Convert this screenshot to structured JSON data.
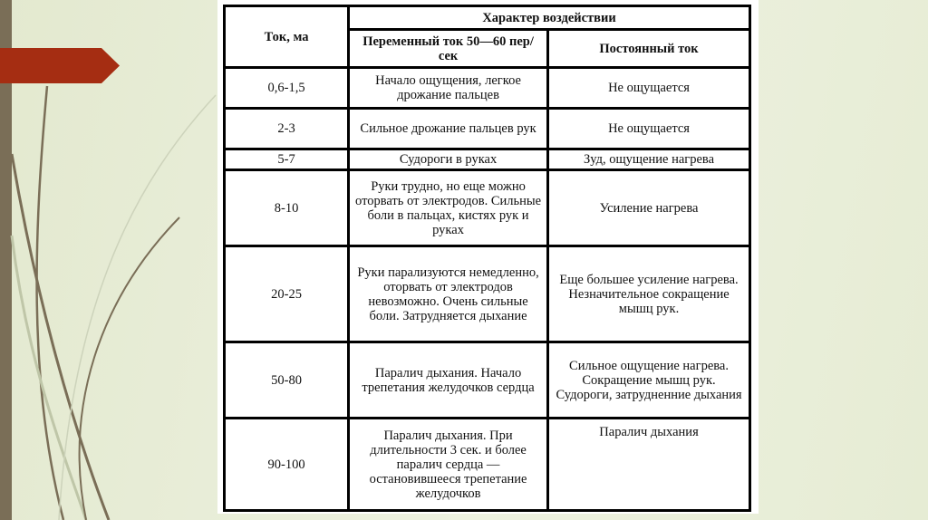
{
  "table": {
    "header": {
      "current": "Ток, ма",
      "effect": "Характер воздействии",
      "ac": "Переменный ток 50—60 пер/сек",
      "dc": "Постоянный ток"
    },
    "rows": [
      {
        "current": "0,6-1,5",
        "ac": "Начало ощущения, легкое дрожание пальцев",
        "dc": "Не ощущается"
      },
      {
        "current": "2-3",
        "ac": "Сильное дрожание пальцев рук",
        "dc": "Не ощущается"
      },
      {
        "current": "5-7",
        "ac": "Судороги в руках",
        "dc": "Зуд, ощущение нагрева"
      },
      {
        "current": "8-10",
        "ac": "Руки трудно, но еще можно оторвать от электродов. Сильные боли в пальцах, кистях рук и руках",
        "dc": "Усиление нагрева"
      },
      {
        "current": "20-25",
        "ac": "Руки парализуются немедленно, оторвать от электродов невозможно. Очень сильные боли. Затрудняется дыхание",
        "dc": "Еще большее усиление нагрева. Незначительное сокращение мышц рук."
      },
      {
        "current": "50-80",
        "ac": "Паралич дыхания. Начало трепетания желудочков сердца",
        "dc": "Сильное ощущение нагрева. Сокращение мышц рук. Судороги, затрудненние дыхания"
      },
      {
        "current": "90-100",
        "ac": "Паралич дыхания. При длительности 3 сек. и более паралич сердца — остановившееся трепетание желудочков",
        "dc": "Паралич дыхания"
      }
    ]
  },
  "colors": {
    "accent": "#a52d12",
    "side_bar": "#7a6e57",
    "background": "#e8edd8"
  }
}
